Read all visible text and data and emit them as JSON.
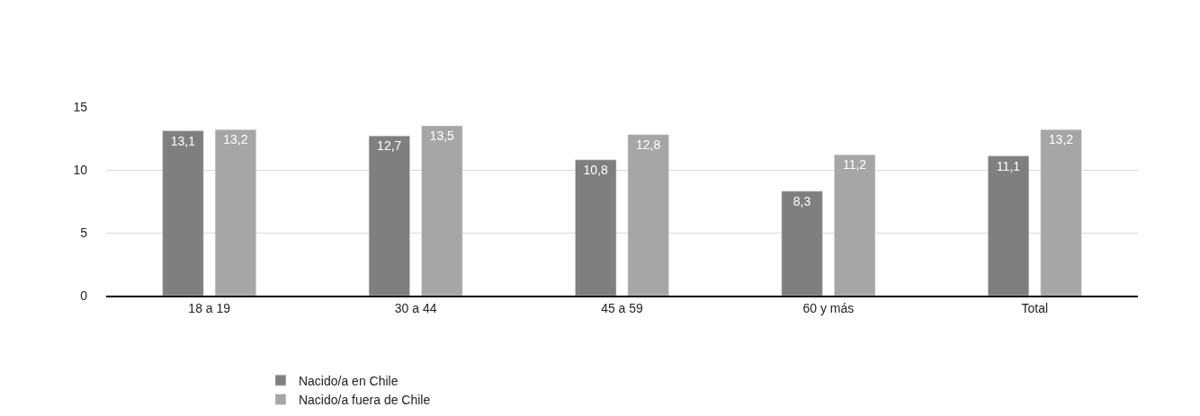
{
  "chart_data": {
    "type": "bar",
    "categories": [
      "18 a 19",
      "30 a 44",
      "45 a 59",
      "60 y más",
      "Total"
    ],
    "series": [
      {
        "name": "Nacido/a en Chile",
        "color": "#7f7f7f",
        "values": [
          13.1,
          12.7,
          10.8,
          8.3,
          11.1
        ],
        "value_labels": [
          "13,1",
          "12,7",
          "10,8",
          "8,3",
          "11,1"
        ]
      },
      {
        "name": "Nacido/a fuera de Chile",
        "color": "#a6a6a6",
        "values": [
          13.2,
          13.5,
          12.8,
          11.2,
          13.2
        ],
        "value_labels": [
          "13,2",
          "13,5",
          "12,8",
          "11,2",
          "13,2"
        ]
      }
    ],
    "ylim": [
      0,
      15
    ],
    "yticks": [
      0,
      5,
      10,
      15
    ],
    "grid": "y",
    "legend": "bottom"
  }
}
